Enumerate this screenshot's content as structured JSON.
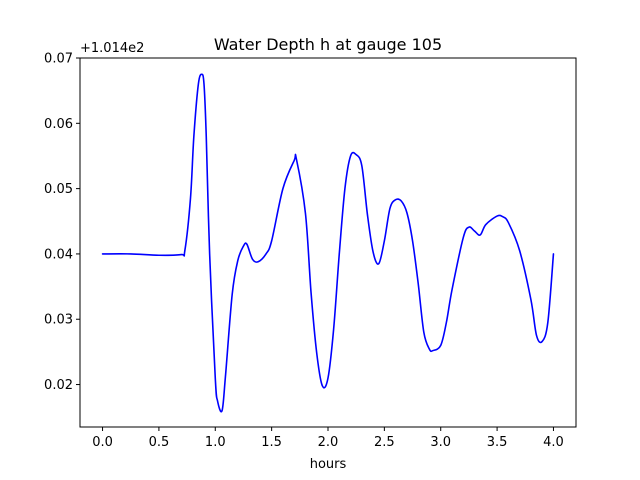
{
  "chart_data": {
    "type": "line",
    "title": "Water Depth h at gauge 105",
    "xlabel": "hours",
    "ylabel": "",
    "y_offset_label": "+1.014e2",
    "xlim": [
      -0.2,
      4.2
    ],
    "ylim": [
      0.0135,
      0.07
    ],
    "xticks": [
      0.0,
      0.5,
      1.0,
      1.5,
      2.0,
      2.5,
      3.0,
      3.5,
      4.0
    ],
    "xtick_labels": [
      "0.0",
      "0.5",
      "1.0",
      "1.5",
      "2.0",
      "2.5",
      "3.0",
      "3.5",
      "4.0"
    ],
    "yticks": [
      0.02,
      0.03,
      0.04,
      0.05,
      0.06,
      0.07
    ],
    "ytick_labels": [
      "0.02",
      "0.03",
      "0.04",
      "0.05",
      "0.06",
      "0.07"
    ],
    "grid": false,
    "legend": "none",
    "series": [
      {
        "color": "#0000ff",
        "x": [
          0.0,
          0.25,
          0.5,
          0.7,
          0.73,
          0.78,
          0.81,
          0.85,
          0.88,
          0.9,
          0.92,
          0.95,
          1.0,
          1.02,
          1.06,
          1.09,
          1.15,
          1.2,
          1.25,
          1.28,
          1.33,
          1.38,
          1.45,
          1.5,
          1.6,
          1.7,
          1.72,
          1.8,
          1.85,
          1.9,
          1.95,
          2.0,
          2.05,
          2.1,
          2.15,
          2.2,
          2.25,
          2.3,
          2.35,
          2.4,
          2.45,
          2.5,
          2.55,
          2.6,
          2.65,
          2.7,
          2.75,
          2.8,
          2.85,
          2.9,
          2.93,
          3.0,
          3.05,
          3.1,
          3.2,
          3.25,
          3.3,
          3.35,
          3.4,
          3.5,
          3.55,
          3.6,
          3.7,
          3.8,
          3.85,
          3.9,
          3.95,
          4.0
        ],
        "y": [
          0.04,
          0.04,
          0.0398,
          0.0399,
          0.0405,
          0.0485,
          0.058,
          0.066,
          0.0675,
          0.066,
          0.058,
          0.04,
          0.021,
          0.0175,
          0.016,
          0.0212,
          0.0338,
          0.039,
          0.0412,
          0.0415,
          0.0392,
          0.0388,
          0.04,
          0.042,
          0.05,
          0.0543,
          0.0545,
          0.0462,
          0.034,
          0.0248,
          0.0198,
          0.021,
          0.0285,
          0.04,
          0.05,
          0.055,
          0.0552,
          0.0535,
          0.046,
          0.0403,
          0.0385,
          0.042,
          0.047,
          0.0483,
          0.0481,
          0.0463,
          0.042,
          0.0355,
          0.028,
          0.0254,
          0.0252,
          0.026,
          0.0295,
          0.0345,
          0.0425,
          0.0441,
          0.0435,
          0.0429,
          0.0445,
          0.0458,
          0.0457,
          0.0448,
          0.0405,
          0.033,
          0.0275,
          0.0266,
          0.0295,
          0.04
        ]
      }
    ]
  }
}
